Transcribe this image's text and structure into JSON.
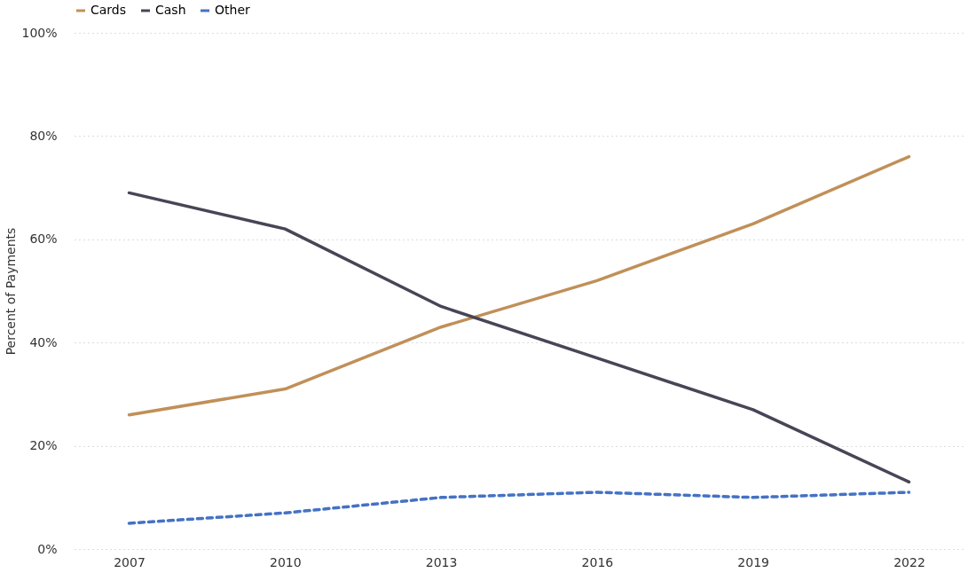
{
  "chart_data": {
    "type": "line",
    "ylabel": "Percent of Payments",
    "categories": [
      "2007",
      "2010",
      "2013",
      "2016",
      "2019",
      "2022"
    ],
    "series": [
      {
        "name": "Cards",
        "color": "#c09058",
        "line_style": "solid",
        "values": [
          26,
          31,
          43,
          52,
          63,
          76
        ]
      },
      {
        "name": "Cash",
        "color": "#474556",
        "line_style": "solid",
        "values": [
          69,
          62,
          47,
          37,
          27,
          13
        ]
      },
      {
        "name": "Other",
        "color": "#4472c4",
        "line_style": "dashed",
        "values": [
          5,
          7,
          10,
          11,
          10,
          11
        ]
      }
    ],
    "ylim": [
      0,
      100
    ],
    "yticks": [
      {
        "value": 0,
        "label": "0%"
      },
      {
        "value": 20,
        "label": "20%"
      },
      {
        "value": 40,
        "label": "40%"
      },
      {
        "value": 60,
        "label": "60%"
      },
      {
        "value": 80,
        "label": "80%"
      },
      {
        "value": 100,
        "label": "100%"
      }
    ],
    "grid": "y",
    "legend": "top",
    "marker": "none"
  }
}
